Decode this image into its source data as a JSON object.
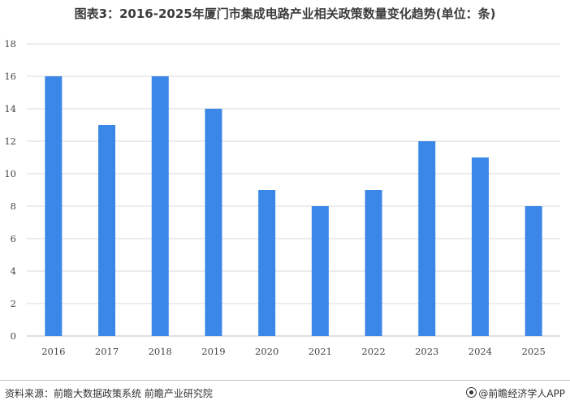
{
  "title": "图表3：2016-2025年厦门市集成电路产业相关政策数量变化趋势(单位：条)",
  "source": "资料来源：前瞻大数据政策系统 前瞻产业研究院",
  "brand": "@前瞻经济学人APP",
  "colors": {
    "bar": "#3A87E8",
    "grid": "#d9d9d9",
    "axis": "#bfbfbf"
  },
  "chart_data": {
    "type": "bar",
    "title": "图表3：2016-2025年厦门市集成电路产业相关政策数量变化趋势(单位：条)",
    "categories": [
      "2016",
      "2017",
      "2018",
      "2019",
      "2020",
      "2021",
      "2022",
      "2023",
      "2024",
      "2025"
    ],
    "values": [
      16,
      13,
      16,
      14,
      9,
      8,
      9,
      12,
      11,
      8
    ],
    "xlabel": "",
    "ylabel": "",
    "ylim": [
      0,
      18
    ],
    "yticks": [
      0,
      2,
      4,
      6,
      8,
      10,
      12,
      14,
      16,
      18
    ],
    "grid": true,
    "legend": "none"
  }
}
